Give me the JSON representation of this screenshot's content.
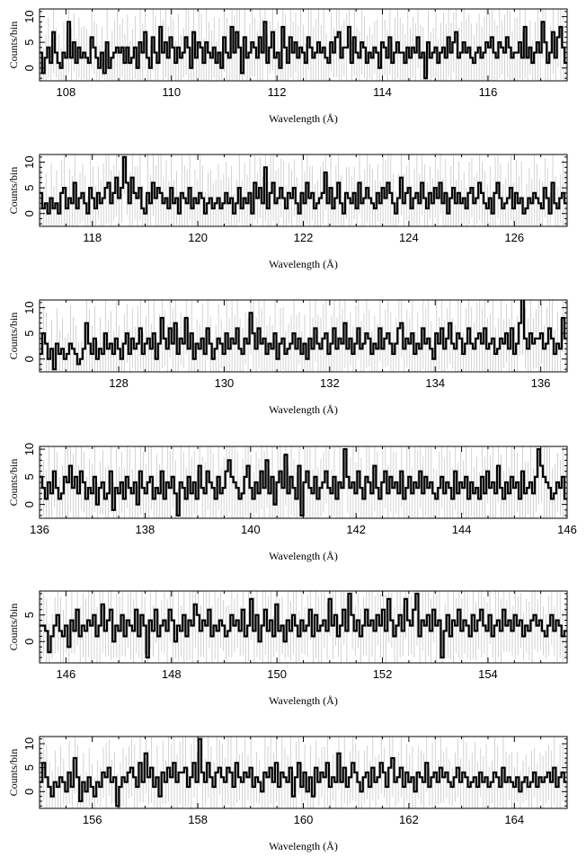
{
  "chart_data": [
    {
      "type": "line",
      "style": "histogram-step",
      "xlabel": "Wavelength (Å)",
      "ylabel": "Counts/bin",
      "xlim": [
        107.5,
        117.5
      ],
      "ylim": [
        -2.5,
        11.5
      ],
      "xticks": [
        108,
        110,
        112,
        114,
        116
      ],
      "yticks": [
        0,
        5,
        10
      ],
      "bin_width": 0.05,
      "values": [
        3,
        -1,
        2,
        4,
        1,
        7,
        3,
        1,
        0,
        3,
        2,
        9,
        2,
        5,
        1,
        4,
        2,
        3,
        2,
        1,
        6,
        4,
        2,
        0,
        3,
        -1,
        5,
        0,
        2,
        3,
        4,
        3,
        4,
        1,
        4,
        1,
        2,
        4,
        0,
        5,
        3,
        7,
        2,
        0,
        6,
        3,
        1,
        8,
        3,
        5,
        2,
        6,
        4,
        1,
        4,
        2,
        3,
        6,
        4,
        0,
        7,
        2,
        5,
        4,
        1,
        5,
        3,
        2,
        4,
        1,
        3,
        0,
        6,
        3,
        2,
        8,
        3,
        7,
        4,
        -1,
        6,
        2,
        3,
        5,
        4,
        2,
        6,
        3,
        9,
        1,
        4,
        7,
        2,
        3,
        0,
        8,
        4,
        1,
        6,
        3,
        5,
        2,
        4,
        3,
        1,
        6,
        4,
        2,
        3,
        5,
        3,
        4,
        2,
        1,
        5,
        3,
        6,
        7,
        2,
        4,
        4,
        8,
        1,
        6,
        3,
        2,
        5,
        4,
        1,
        3,
        2,
        4,
        3,
        0,
        5,
        4,
        2,
        6,
        1,
        3,
        5,
        3,
        3,
        1,
        4,
        2,
        4,
        3,
        6,
        2,
        3,
        -2,
        5,
        2,
        3,
        4,
        1,
        3,
        4,
        2,
        6,
        3,
        5,
        7,
        2,
        3,
        5,
        3,
        4,
        2,
        1,
        3,
        4,
        2,
        3,
        5,
        4,
        6,
        3,
        2,
        5,
        4,
        3,
        6,
        4,
        2,
        3,
        3,
        5,
        2,
        8,
        2,
        4,
        1,
        3,
        5,
        3,
        9,
        5,
        1,
        3,
        7,
        2,
        6,
        8,
        4,
        1
      ]
    },
    {
      "type": "line",
      "style": "histogram-step",
      "xlabel": "Wavelength (Å)",
      "ylabel": "Counts/bin",
      "xlim": [
        117,
        127
      ],
      "ylim": [
        -2.5,
        11.5
      ],
      "xticks": [
        118,
        120,
        122,
        124,
        126
      ],
      "yticks": [
        0,
        5,
        10
      ],
      "bin_width": 0.05,
      "values": [
        4,
        1,
        2,
        0,
        3,
        1,
        2,
        0,
        4,
        5,
        1,
        3,
        2,
        6,
        1,
        3,
        4,
        2,
        0,
        5,
        3,
        1,
        4,
        2,
        3,
        5,
        6,
        2,
        4,
        7,
        3,
        5,
        11,
        6,
        2,
        7,
        4,
        3,
        5,
        1,
        0,
        4,
        2,
        6,
        3,
        5,
        4,
        2,
        3,
        1,
        5,
        2,
        3,
        0,
        4,
        3,
        2,
        5,
        1,
        3,
        2,
        4,
        3,
        0,
        2,
        3,
        1,
        2,
        3,
        1,
        2,
        4,
        2,
        3,
        0,
        2,
        5,
        1,
        3,
        2,
        4,
        0,
        6,
        3,
        5,
        2,
        9,
        1,
        4,
        6,
        2,
        3,
        5,
        3,
        1,
        4,
        3,
        5,
        2,
        0,
        4,
        2,
        6,
        3,
        4,
        1,
        2,
        3,
        4,
        8,
        2,
        5,
        1,
        3,
        6,
        2,
        0,
        4,
        3,
        2,
        4,
        1,
        6,
        2,
        3,
        5,
        3,
        2,
        1,
        4,
        2,
        5,
        3,
        6,
        4,
        2,
        0,
        3,
        7,
        2,
        4,
        5,
        1,
        3,
        4,
        2,
        6,
        3,
        1,
        4,
        2,
        5,
        3,
        6,
        2,
        4,
        0,
        3,
        5,
        2,
        4,
        2,
        3,
        1,
        4,
        5,
        2,
        3,
        6,
        4,
        2,
        1,
        3,
        0,
        4,
        6,
        3,
        1,
        2,
        3,
        5,
        1,
        4,
        2,
        3,
        0,
        1,
        3,
        2,
        4,
        3,
        2,
        1,
        5,
        3,
        0,
        6,
        2,
        1,
        3,
        4,
        2
      ]
    },
    {
      "type": "line",
      "style": "histogram-step",
      "xlabel": "Wavelength (Å)",
      "ylabel": "Counts/bin",
      "xlim": [
        126.5,
        136.5
      ],
      "ylim": [
        -2.5,
        11.5
      ],
      "xticks": [
        128,
        130,
        132,
        134,
        136
      ],
      "yticks": [
        0,
        5,
        10
      ],
      "bin_width": 0.05,
      "values": [
        1,
        5,
        3,
        0,
        2,
        -2,
        3,
        1,
        2,
        0,
        1,
        3,
        2,
        1,
        -1,
        0,
        2,
        7,
        3,
        1,
        4,
        0,
        2,
        1,
        5,
        2,
        3,
        1,
        4,
        2,
        0,
        3,
        5,
        1,
        4,
        2,
        3,
        6,
        1,
        3,
        4,
        2,
        5,
        0,
        3,
        8,
        4,
        2,
        6,
        3,
        7,
        1,
        4,
        3,
        8,
        2,
        5,
        0,
        3,
        2,
        4,
        1,
        6,
        3,
        0,
        2,
        4,
        3,
        1,
        5,
        2,
        4,
        3,
        6,
        2,
        1,
        4,
        3,
        9,
        5,
        2,
        6,
        3,
        4,
        1,
        3,
        2,
        5,
        0,
        3,
        4,
        1,
        2,
        3,
        5,
        2,
        4,
        1,
        3,
        0,
        4,
        2,
        6,
        3,
        2,
        4,
        5,
        1,
        3,
        6,
        2,
        4,
        3,
        7,
        2,
        4,
        1,
        3,
        6,
        2,
        3,
        5,
        4,
        1,
        3,
        2,
        6,
        2,
        4,
        5,
        3,
        1,
        3,
        6,
        7,
        2,
        4,
        3,
        5,
        1,
        3,
        2,
        6,
        3,
        4,
        2,
        0,
        5,
        3,
        6,
        2,
        4,
        7,
        3,
        2,
        5,
        4,
        1,
        3,
        6,
        3,
        2,
        4,
        5,
        3,
        6,
        2,
        3,
        4,
        1,
        2,
        4,
        3,
        5,
        2,
        6,
        1,
        3,
        7,
        12,
        4,
        2,
        5,
        3,
        4,
        4,
        5,
        2,
        3,
        6,
        4,
        1,
        3,
        2,
        8,
        4
      ]
    },
    {
      "type": "line",
      "style": "histogram-step",
      "xlabel": "Wavelength (Å)",
      "ylabel": "Counts/bin",
      "xlim": [
        136,
        146
      ],
      "ylim": [
        -2.5,
        10.5
      ],
      "xticks": [
        136,
        138,
        140,
        142,
        144,
        146
      ],
      "yticks": [
        0,
        5,
        10
      ],
      "bin_width": 0.05,
      "values": [
        5,
        3,
        1,
        4,
        2,
        6,
        3,
        1,
        2,
        5,
        4,
        7,
        3,
        5,
        2,
        6,
        4,
        1,
        3,
        2,
        5,
        0,
        3,
        4,
        1,
        2,
        6,
        -1,
        3,
        2,
        4,
        1,
        5,
        3,
        2,
        4,
        0,
        6,
        3,
        2,
        4,
        5,
        1,
        3,
        2,
        6,
        1,
        4,
        3,
        5,
        2,
        -2,
        4,
        3,
        1,
        5,
        2,
        4,
        1,
        7,
        3,
        2,
        6,
        4,
        3,
        1,
        5,
        2,
        3,
        6,
        8,
        5,
        4,
        3,
        1,
        2,
        5,
        7,
        3,
        1,
        4,
        2,
        6,
        3,
        8,
        2,
        5,
        0,
        4,
        6,
        3,
        9,
        2,
        5,
        3,
        1,
        7,
        -2,
        4,
        6,
        3,
        2,
        5,
        1,
        3,
        4,
        6,
        3,
        2,
        5,
        1,
        4,
        3,
        10,
        5,
        3,
        4,
        2,
        6,
        3,
        1,
        5,
        4,
        2,
        7,
        3,
        1,
        4,
        6,
        2,
        5,
        3,
        4,
        2,
        6,
        1,
        3,
        5,
        2,
        4,
        3,
        6,
        2,
        5,
        3,
        4,
        2,
        1,
        3,
        5,
        2,
        4,
        3,
        1,
        6,
        2,
        4,
        3,
        5,
        1,
        4,
        2,
        3,
        1,
        5,
        2,
        6,
        3,
        4,
        2,
        7,
        3,
        1,
        4,
        2,
        5,
        3,
        4,
        1,
        6,
        2,
        3,
        4,
        2,
        5,
        10,
        7,
        5,
        4,
        3,
        1,
        2,
        4,
        3,
        5,
        1
      ]
    },
    {
      "type": "line",
      "style": "histogram-step",
      "xlabel": "Wavelength (Å)",
      "ylabel": "Counts/bin",
      "xlim": [
        145.5,
        155.5
      ],
      "ylim": [
        -4,
        9.5
      ],
      "xticks": [
        146,
        148,
        150,
        152,
        154
      ],
      "yticks": [
        0,
        5
      ],
      "bin_width": 0.05,
      "values": [
        3,
        3,
        2,
        -2,
        1,
        3,
        5,
        2,
        1,
        3,
        -1,
        4,
        2,
        6,
        1,
        3,
        2,
        4,
        3,
        5,
        1,
        3,
        7,
        2,
        4,
        6,
        0,
        3,
        2,
        5,
        1,
        4,
        3,
        2,
        6,
        1,
        5,
        3,
        -3,
        4,
        2,
        6,
        1,
        3,
        4,
        2,
        6,
        4,
        0,
        3,
        2,
        5,
        1,
        4,
        3,
        7,
        5,
        2,
        4,
        3,
        6,
        1,
        3,
        2,
        4,
        3,
        1,
        2,
        5,
        3,
        4,
        2,
        6,
        1,
        3,
        8,
        2,
        5,
        0,
        3,
        6,
        2,
        4,
        1,
        7,
        2,
        3,
        0,
        4,
        2,
        5,
        3,
        1,
        4,
        2,
        3,
        6,
        1,
        5,
        2,
        3,
        4,
        2,
        8,
        3,
        5,
        1,
        3,
        6,
        2,
        9,
        5,
        2,
        4,
        1,
        3,
        6,
        3,
        4,
        2,
        5,
        3,
        6,
        2,
        8,
        4,
        1,
        3,
        5,
        2,
        8,
        4,
        3,
        6,
        9,
        1,
        4,
        3,
        5,
        2,
        6,
        3,
        4,
        -3,
        2,
        5,
        1,
        4,
        3,
        6,
        2,
        4,
        3,
        1,
        5,
        2,
        4,
        6,
        3,
        2,
        5,
        1,
        3,
        4,
        2,
        6,
        3,
        4,
        2,
        5,
        3,
        4,
        1,
        3,
        2,
        4,
        5,
        3,
        4,
        2,
        1,
        3,
        5,
        2,
        4,
        3,
        1,
        2
      ]
    },
    {
      "type": "line",
      "style": "histogram-step",
      "xlabel": "Wavelength (Å)",
      "ylabel": "Counts/bin",
      "xlim": [
        155,
        165
      ],
      "ylim": [
        -3.5,
        11.5
      ],
      "xticks": [
        156,
        158,
        160,
        162,
        164
      ],
      "yticks": [
        0,
        5,
        10
      ],
      "bin_width": 0.05,
      "values": [
        2,
        6,
        3,
        1,
        -1,
        2,
        1,
        3,
        2,
        0,
        4,
        1,
        7,
        3,
        -2,
        2,
        0,
        3,
        1,
        -1,
        2,
        1,
        4,
        3,
        5,
        2,
        3,
        -3,
        1,
        3,
        2,
        4,
        5,
        3,
        1,
        6,
        2,
        8,
        3,
        5,
        1,
        3,
        -1,
        4,
        2,
        5,
        3,
        6,
        2,
        4,
        4,
        5,
        1,
        3,
        6,
        2,
        11,
        4,
        2,
        6,
        3,
        1,
        4,
        5,
        3,
        2,
        5,
        4,
        1,
        6,
        3,
        2,
        4,
        3,
        5,
        1,
        3,
        2,
        0,
        4,
        3,
        5,
        2,
        6,
        1,
        4,
        3,
        2,
        5,
        -1,
        3,
        6,
        1,
        4,
        0,
        3,
        -1,
        5,
        2,
        4,
        3,
        6,
        1,
        3,
        2,
        8,
        2,
        5,
        1,
        3,
        6,
        4,
        2,
        0,
        3,
        4,
        1,
        5,
        2,
        3,
        6,
        4,
        1,
        5,
        7,
        2,
        3,
        5,
        1,
        4,
        2,
        3,
        0,
        4,
        3,
        2,
        6,
        1,
        3,
        4,
        2,
        5,
        3,
        4,
        2,
        1,
        3,
        5,
        2,
        4,
        3,
        1,
        2,
        3,
        1,
        4,
        2,
        3,
        1,
        2,
        4,
        3,
        1,
        5,
        2,
        3,
        2,
        1,
        3,
        0,
        2,
        3,
        1,
        2,
        4,
        1,
        3,
        2,
        3,
        4,
        2,
        5,
        1,
        3,
        4,
        2
      ]
    }
  ]
}
